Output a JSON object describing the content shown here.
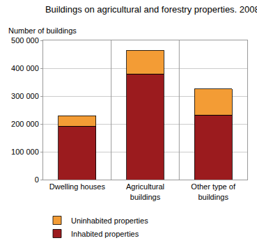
{
  "chart_data": {
    "type": "bar",
    "title": "Buildings on agricultural and forestry properties. 2008",
    "ylabel": "Number of buildings",
    "categories": [
      "Dwelling houses",
      "Agricultural buildings",
      "Other type of buildings"
    ],
    "series": [
      {
        "name": "Inhabited properties",
        "color": "#9b1b1e",
        "values": [
          192000,
          379000,
          232000
        ]
      },
      {
        "name": "Uninhabited properties",
        "color": "#f39c35",
        "values": [
          38000,
          86000,
          94000
        ]
      }
    ],
    "stacked": true,
    "ylim": [
      0,
      500000
    ],
    "yticks": [
      0,
      {
        "value": 100000,
        "label": "100 000"
      },
      {
        "value": 200000,
        "label": "200 000"
      },
      {
        "value": 300000,
        "label": "300 000"
      },
      {
        "value": 400000,
        "label": "400 000"
      },
      {
        "value": 500000,
        "label": "500 000"
      }
    ],
    "grid": true,
    "legend": "bottom"
  }
}
